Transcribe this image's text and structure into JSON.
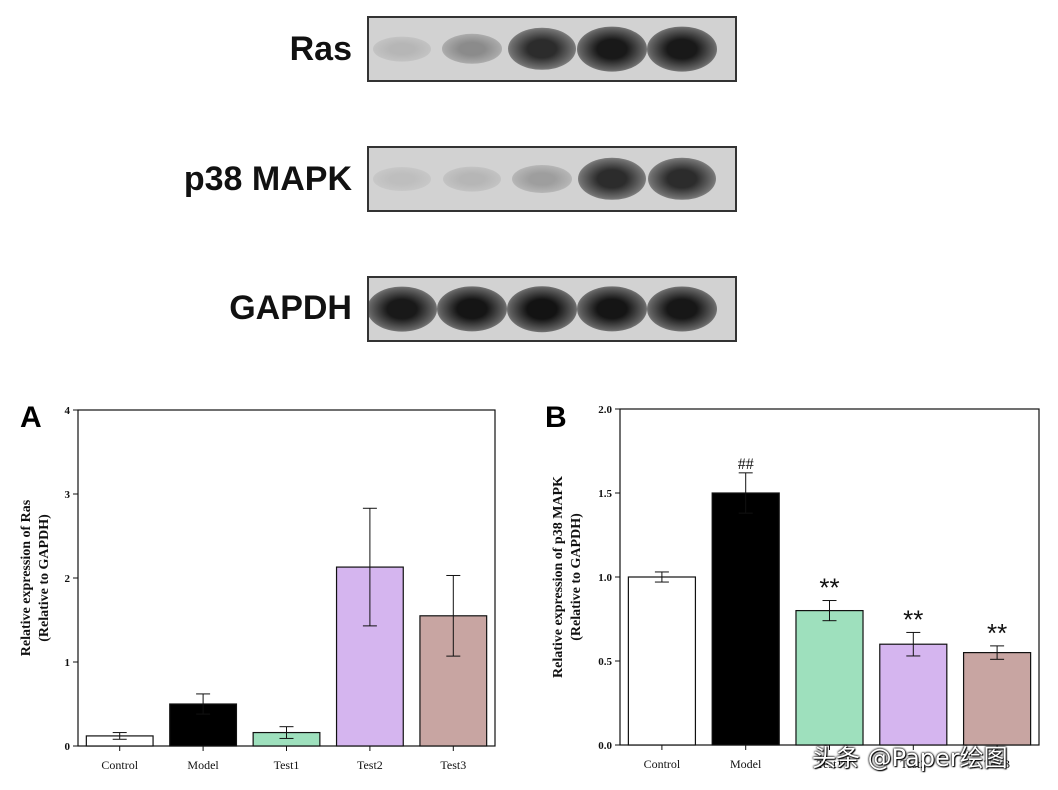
{
  "blots": [
    {
      "label": "Ras",
      "intensity": [
        0.12,
        0.35,
        0.85,
        0.95,
        0.95
      ]
    },
    {
      "label": "p38 MAPK",
      "intensity": [
        0.08,
        0.12,
        0.25,
        0.85,
        0.85
      ]
    },
    {
      "label": "GAPDH",
      "intensity": [
        0.95,
        0.97,
        0.98,
        0.97,
        0.96
      ]
    }
  ],
  "chart_data": [
    {
      "type": "bar",
      "panel": "A",
      "categories": [
        "Control",
        "Model",
        "Test1",
        "Test2",
        "Test3"
      ],
      "values": [
        0.12,
        0.5,
        0.16,
        2.13,
        1.55
      ],
      "errors": [
        0.04,
        0.12,
        0.07,
        0.7,
        0.48
      ],
      "colors": [
        "#ffffff",
        "#000000",
        "#9ee0bd",
        "#d5b5ef",
        "#c8a5a2"
      ],
      "ylabel_lines": [
        "Relative expression of Ras",
        "(Relative to GAPDH)"
      ],
      "ylim": [
        0,
        4
      ],
      "yticks": [
        0,
        1,
        2,
        3,
        4
      ],
      "ytick_labels": [
        "0",
        "1",
        "2",
        "3",
        "4"
      ],
      "annotations": [
        "",
        "",
        "",
        "",
        ""
      ]
    },
    {
      "type": "bar",
      "panel": "B",
      "categories": [
        "Control",
        "Model",
        "Test1",
        "Test2",
        "Test3"
      ],
      "values": [
        1.0,
        1.5,
        0.8,
        0.6,
        0.55
      ],
      "errors": [
        0.03,
        0.12,
        0.06,
        0.07,
        0.04
      ],
      "colors": [
        "#ffffff",
        "#000000",
        "#9ee0bd",
        "#d5b5ef",
        "#c8a5a2"
      ],
      "ylabel_lines": [
        "Relative expression of p38 MAPK",
        "(Relative to GAPDH)"
      ],
      "ylim": [
        0,
        2.0
      ],
      "yticks": [
        0,
        0.5,
        1.0,
        1.5,
        2.0
      ],
      "ytick_labels": [
        "0.0",
        "0.5",
        "1.0",
        "1.5",
        "2.0"
      ],
      "annotations": [
        "",
        "##",
        "**",
        "**",
        "**"
      ]
    }
  ],
  "watermark": "头条 @Paper绘图"
}
